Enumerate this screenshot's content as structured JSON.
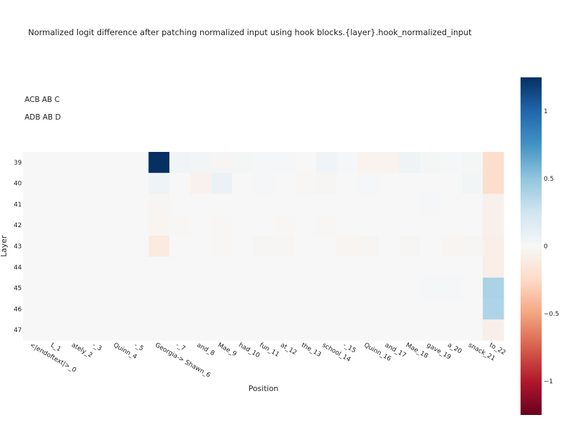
{
  "chart_data": {
    "type": "heatmap",
    "title": "Normalized logit difference after patching normalized input using hook blocks.{layer}.hook_normalized_input",
    "annotations": [
      "ACB AB C",
      "ADB AB D"
    ],
    "xlabel": "Position",
    "ylabel": "Layer",
    "x_labels": [
      "<|endoftext|>_0",
      "L_1",
      "ately_2",
      "-_3",
      "Quinn_4",
      "-_5",
      "Georgia-> Shawn_6",
      "-_7",
      "and_8",
      "Mae_9",
      "had_10",
      "fun_11",
      "at_12",
      "the_13",
      "school_14",
      "-_15",
      "Quinn_16",
      "and_17",
      "Mae_18",
      "gave_19",
      "a_20",
      "snack_21",
      "to_22"
    ],
    "y_labels": [
      "39",
      "40",
      "41",
      "42",
      "43",
      "44",
      "45",
      "46",
      "47"
    ],
    "colorscale": "RdBu",
    "zrange": [
      -1.25,
      1.25
    ],
    "colorbar_ticks": [
      1,
      0.5,
      0,
      -0.5,
      -1
    ],
    "colorbar_tick_labels": [
      "1",
      "0.5",
      "0",
      "−0.5",
      "−1"
    ],
    "z": [
      [
        0,
        0,
        0,
        0,
        0,
        0,
        1.25,
        0.04,
        0.03,
        -0.02,
        0.02,
        0.01,
        0.01,
        0,
        0.04,
        0.01,
        -0.04,
        -0.04,
        0.06,
        0.02,
        0.01,
        0.02,
        -0.22
      ],
      [
        0,
        0,
        0,
        0,
        0,
        0,
        0.05,
        0,
        -0.05,
        0.08,
        0,
        0.01,
        0,
        -0.01,
        -0.02,
        0,
        0.01,
        0,
        0,
        0,
        0,
        0.03,
        -0.22
      ],
      [
        0,
        0,
        0,
        0,
        0,
        0,
        -0.02,
        0,
        0,
        0,
        0,
        0,
        0,
        0,
        0,
        0,
        0,
        0,
        0,
        0.01,
        0,
        0,
        -0.06
      ],
      [
        0,
        0,
        0,
        0,
        0,
        0,
        -0.03,
        -0.01,
        0,
        -0.01,
        0,
        0,
        -0.01,
        0,
        -0.01,
        0,
        0,
        0,
        0,
        0,
        0,
        0,
        -0.06
      ],
      [
        0,
        0,
        0,
        0,
        0,
        0,
        -0.12,
        0,
        0,
        -0.01,
        0,
        -0.02,
        -0.02,
        0,
        0,
        -0.03,
        -0.02,
        0,
        -0.02,
        0,
        -0.03,
        -0.02,
        -0.08
      ],
      [
        0,
        0,
        0,
        0,
        0,
        0,
        0,
        0,
        0,
        0,
        0,
        0,
        0,
        0,
        0,
        0,
        0,
        0,
        0,
        0,
        0,
        0,
        -0.08
      ],
      [
        0,
        0,
        0,
        0,
        0,
        0,
        0,
        0,
        0,
        0,
        0,
        0,
        0,
        0,
        0,
        0,
        0,
        0,
        0,
        0.01,
        0.01,
        0,
        0.4
      ],
      [
        0,
        0,
        0,
        0,
        0,
        0,
        0,
        0,
        0,
        0,
        0,
        0,
        0,
        0,
        0,
        0,
        0,
        0,
        0,
        0,
        0,
        0,
        0.38
      ],
      [
        0,
        0,
        0,
        0,
        0,
        0,
        0,
        0,
        0,
        0,
        0,
        0,
        0,
        0,
        0,
        0,
        0,
        0,
        0,
        0,
        0,
        0,
        -0.07
      ]
    ]
  }
}
